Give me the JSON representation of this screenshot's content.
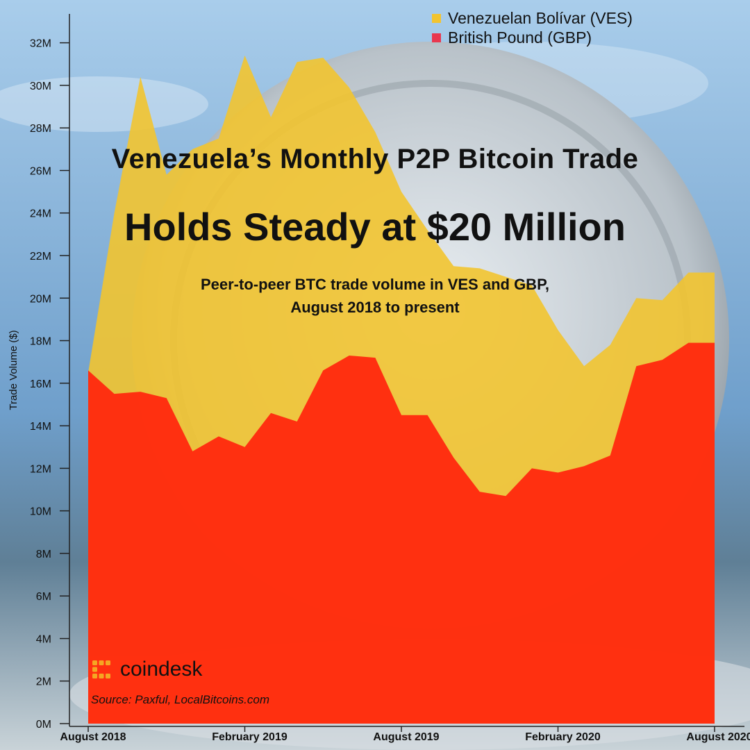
{
  "header": {
    "title_line1": "Venezuela’s Monthly P2P Bitcoin Trade",
    "title_line2": "Holds Steady at $20 Million",
    "subtitle_line1": "Peer-to-peer BTC trade volume in VES and GBP,",
    "subtitle_line2": "August 2018 to present"
  },
  "legend": {
    "ves_label": "Venezuelan Bolívar (VES)",
    "gbp_label": "British Pound (GBP)"
  },
  "branding": {
    "logo_text": "coindesk",
    "source": "Source: Paxful, LocalBitcoins.com"
  },
  "colors": {
    "ves": "#F2C430",
    "gbp": "#FF2A0F",
    "gbp_legend": "#E8384F",
    "logo_accent": "#F5A623",
    "sky_top": "#9CC3E6",
    "sky_bottom": "#6A9AC6"
  },
  "chart_data": {
    "type": "area",
    "title": "Venezuela’s Monthly P2P Bitcoin Trade Holds Steady at $20 Million",
    "xlabel": "",
    "ylabel": "Trade Volume ($)",
    "ylim": [
      0,
      33
    ],
    "y_unit": "M",
    "yticks": [
      "0M",
      "2M",
      "4M",
      "6M",
      "8M",
      "10M",
      "12M",
      "14M",
      "16M",
      "18M",
      "20M",
      "22M",
      "24M",
      "26M",
      "28M",
      "30M",
      "32M"
    ],
    "xtick_labels": [
      {
        "label": "August 2018",
        "index": 0
      },
      {
        "label": "February 2019",
        "index": 6
      },
      {
        "label": "August 2019",
        "index": 12
      },
      {
        "label": "February 2020",
        "index": 18
      },
      {
        "label": "August 2020",
        "index": 24
      }
    ],
    "categories": [
      "2018-08",
      "2018-09",
      "2018-10",
      "2018-11",
      "2018-12",
      "2019-01",
      "2019-02",
      "2019-03",
      "2019-04",
      "2019-05",
      "2019-06",
      "2019-07",
      "2019-08",
      "2019-09",
      "2019-10",
      "2019-11",
      "2019-12",
      "2020-01",
      "2020-02",
      "2020-03",
      "2020-04",
      "2020-05",
      "2020-06",
      "2020-07",
      "2020-08"
    ],
    "stacked": false,
    "series": [
      {
        "name": "Venezuelan Bolívar (VES)",
        "values": [
          16.5,
          24.0,
          30.4,
          25.8,
          27.0,
          27.5,
          31.4,
          28.5,
          31.1,
          31.3,
          29.9,
          27.8,
          25.0,
          23.2,
          21.5,
          21.4,
          21.0,
          20.6,
          18.5,
          16.8,
          17.8,
          20.0,
          19.9,
          21.2,
          21.2
        ]
      },
      {
        "name": "British Pound (GBP)",
        "values": [
          16.6,
          15.5,
          15.6,
          15.3,
          12.8,
          13.5,
          13.0,
          14.6,
          14.2,
          16.6,
          17.3,
          17.2,
          14.5,
          14.5,
          12.5,
          10.9,
          10.7,
          12.0,
          11.8,
          12.1,
          12.6,
          16.8,
          17.1,
          17.9,
          17.9
        ]
      }
    ]
  }
}
